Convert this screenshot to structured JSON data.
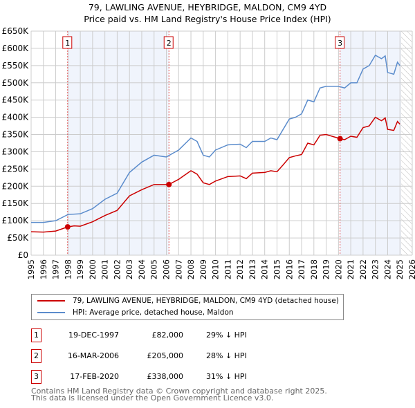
{
  "title": "79, LAWLING AVENUE, HEYBRIDGE, MALDON, CM9 4YD",
  "subtitle": "Price paid vs. HM Land Registry's House Price Index (HPI)",
  "chart_data": {
    "type": "line",
    "title": "79, LAWLING AVENUE, HEYBRIDGE, MALDON, CM9 4YD",
    "subtitle": "Price paid vs. HM Land Registry's House Price Index (HPI)",
    "xlim": [
      1995,
      2026
    ],
    "ylim": [
      0,
      650000
    ],
    "x_ticks": [
      "1995",
      "1996",
      "1997",
      "1998",
      "1999",
      "2000",
      "2001",
      "2002",
      "2003",
      "2004",
      "2005",
      "2006",
      "2007",
      "2008",
      "2009",
      "2010",
      "2011",
      "2012",
      "2013",
      "2014",
      "2015",
      "2016",
      "2017",
      "2018",
      "2019",
      "2020",
      "2021",
      "2022",
      "2023",
      "2024",
      "2025",
      "2026"
    ],
    "y_ticks": [
      "£0",
      "£50K",
      "£100K",
      "£150K",
      "£200K",
      "£250K",
      "£300K",
      "£350K",
      "£400K",
      "£450K",
      "£500K",
      "£550K",
      "£600K",
      "£650K"
    ],
    "grid": true,
    "series": [
      {
        "name": "79, LAWLING AVENUE, HEYBRIDGE, MALDON, CM9 4YD (detached house)",
        "color": "#cc0000",
        "x": [
          1995,
          1996,
          1997,
          1997.97,
          1998.5,
          1999,
          2000,
          2001,
          2002,
          2003,
          2004,
          2005,
          2006.2,
          2007,
          2008,
          2008.5,
          2009,
          2009.5,
          2010,
          2011,
          2012,
          2012.5,
          2013,
          2014,
          2014.5,
          2015,
          2015.5,
          2016,
          2016.5,
          2017,
          2017.5,
          2018,
          2018.5,
          2019,
          2020.13,
          2020.5,
          2021,
          2021.5,
          2022,
          2022.5,
          2023,
          2023.5,
          2023.8,
          2024,
          2024.5,
          2024.8,
          2025
        ],
        "y": [
          68000,
          67000,
          70000,
          82000,
          85000,
          84000,
          97000,
          115000,
          130000,
          172000,
          190000,
          205000,
          205000,
          220000,
          245000,
          235000,
          210000,
          205000,
          215000,
          228000,
          230000,
          222000,
          238000,
          240000,
          245000,
          242000,
          262000,
          283000,
          288000,
          292000,
          325000,
          320000,
          348000,
          350000,
          338000,
          335000,
          345000,
          342000,
          370000,
          375000,
          400000,
          390000,
          398000,
          365000,
          362000,
          388000,
          380000
        ]
      },
      {
        "name": "HPI: Average price, detached house, Maldon",
        "color": "#5b8ccc",
        "x": [
          1995,
          1996,
          1997,
          1998,
          1999,
          2000,
          2001,
          2002,
          2003,
          2004,
          2005,
          2006,
          2007,
          2008,
          2008.5,
          2009,
          2009.5,
          2010,
          2011,
          2012,
          2012.5,
          2013,
          2014,
          2014.5,
          2015,
          2015.5,
          2016,
          2016.5,
          2017,
          2017.5,
          2018,
          2018.5,
          2019,
          2020,
          2020.5,
          2021,
          2021.5,
          2022,
          2022.5,
          2023,
          2023.5,
          2023.8,
          2024,
          2024.5,
          2024.8,
          2025
        ],
        "y": [
          95000,
          95000,
          100000,
          118000,
          120000,
          135000,
          162000,
          180000,
          240000,
          270000,
          290000,
          285000,
          305000,
          340000,
          330000,
          290000,
          285000,
          305000,
          320000,
          322000,
          312000,
          330000,
          330000,
          340000,
          335000,
          365000,
          395000,
          400000,
          410000,
          450000,
          445000,
          485000,
          490000,
          490000,
          485000,
          500000,
          500000,
          540000,
          550000,
          580000,
          570000,
          578000,
          530000,
          525000,
          560000,
          550000
        ]
      }
    ],
    "sales": [
      {
        "label": "1",
        "x": 1997.97,
        "y": 82000
      },
      {
        "label": "2",
        "x": 2006.21,
        "y": 205000
      },
      {
        "label": "3",
        "x": 2020.13,
        "y": 338000
      }
    ],
    "data_end": 2025.1
  },
  "legend": {
    "property": "79, LAWLING AVENUE, HEYBRIDGE, MALDON, CM9 4YD (detached house)",
    "hpi": "HPI: Average price, detached house, Maldon"
  },
  "transactions": [
    {
      "num": "1",
      "date": "19-DEC-1997",
      "price": "£82,000",
      "hpi": "29% ↓ HPI"
    },
    {
      "num": "2",
      "date": "16-MAR-2006",
      "price": "£205,000",
      "hpi": "28% ↓ HPI"
    },
    {
      "num": "3",
      "date": "17-FEB-2020",
      "price": "£338,000",
      "hpi": "31% ↓ HPI"
    }
  ],
  "footer": [
    "Contains HM Land Registry data © Crown copyright and database right 2025.",
    "This data is licensed under the Open Government Licence v3.0."
  ]
}
